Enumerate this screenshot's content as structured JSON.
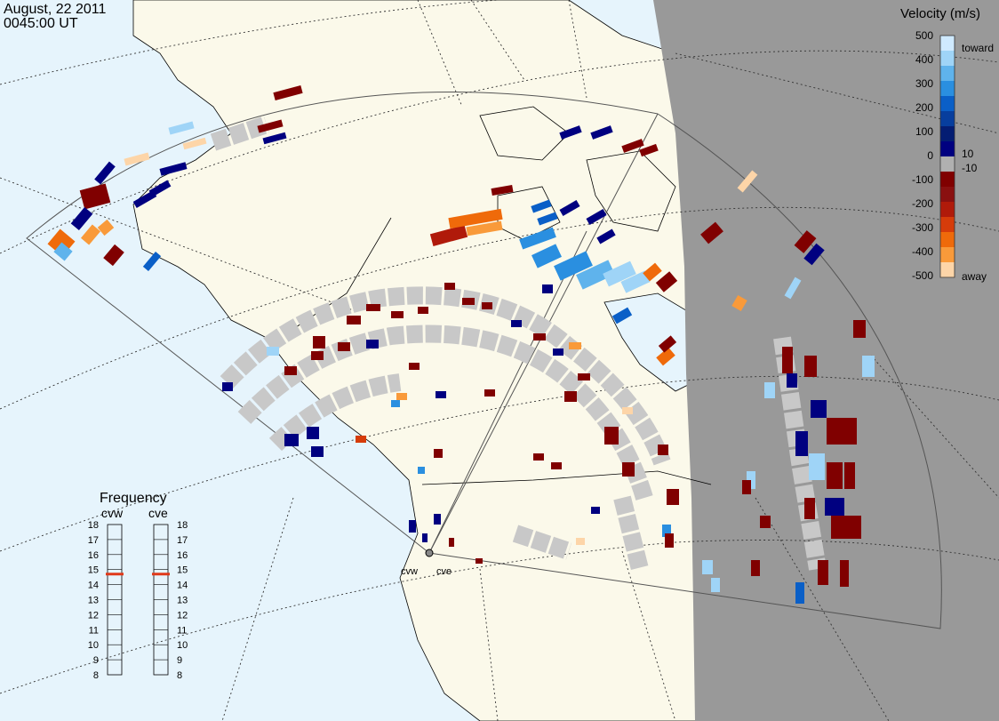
{
  "header": {
    "date": "August, 22 2011",
    "time": "0045:00 UT"
  },
  "colorbar": {
    "title": "Velocity (m/s)",
    "ticks": [
      "500",
      "400",
      "300",
      "200",
      "100",
      "0",
      "-100",
      "-200",
      "-300",
      "-400",
      "-500"
    ],
    "label_10": "10",
    "label_neg10": "-10",
    "toward": "toward",
    "away": "away",
    "colors": [
      "#cfeaff",
      "#9fd4f7",
      "#5fb3ec",
      "#2a8fe0",
      "#0a5fc7",
      "#073e9e",
      "#041d73",
      "#000080",
      "#b0b0b0",
      "#800000",
      "#8a1010",
      "#b01a0a",
      "#d63c0a",
      "#ef6a0a",
      "#f99a3a",
      "#fdd5a8"
    ]
  },
  "frequency": {
    "title": "Frequency",
    "stations": [
      {
        "name": "cvw",
        "value": 14.7
      },
      {
        "name": "cve",
        "value": 14.7
      }
    ],
    "scale": [
      "18",
      "17",
      "16",
      "15",
      "14",
      "13",
      "12",
      "11",
      "10",
      "9",
      "8"
    ]
  },
  "radars": {
    "cvw": "cvw",
    "cve": "cve"
  },
  "colors": {
    "ocean": "#e6f4fc",
    "land": "#fbf9ea",
    "night": "#999999",
    "ground_scatter": "#c8c8c8"
  }
}
